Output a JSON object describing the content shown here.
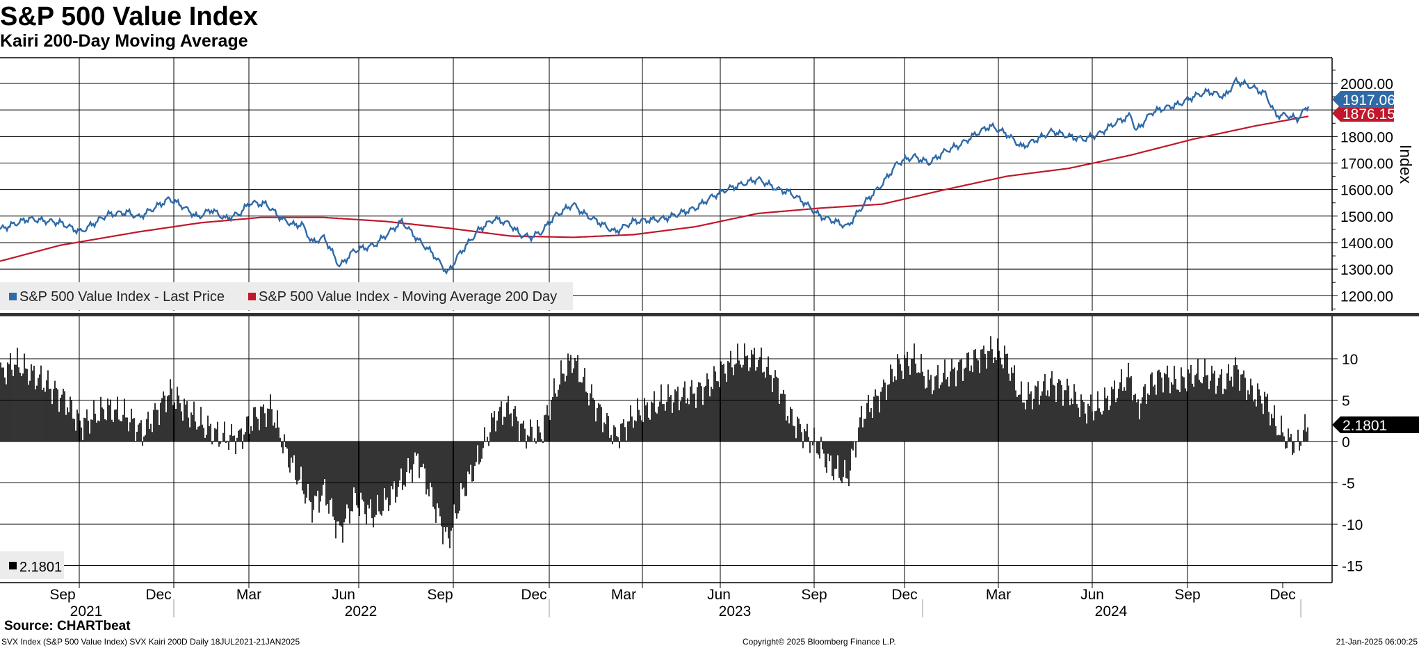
{
  "header": {
    "title": "S&P 500 Value Index",
    "subtitle": "Kairi 200-Day Moving Average"
  },
  "footer": {
    "source": "Source: CHARTbeat",
    "ticker_info": "SVX Index (S&P 500 Value Index) SVX Kairi 200D  Daily 18JUL2021-21JAN2025",
    "copyright": "Copyright© 2025 Bloomberg Finance L.P.",
    "timestamp": "21-Jan-2025 06:00:25"
  },
  "colors": {
    "price_line": "#2e6aa8",
    "ma_line": "#c0172b",
    "bars": "#000000",
    "grid": "#000000",
    "legend_bg": "#ececec"
  },
  "chart_data": [
    {
      "type": "line",
      "title": "S&P 500 Value Index",
      "ylabel": "Index",
      "ylim": [
        1100,
        2100
      ],
      "yticks": [
        "1200.00",
        "1300.00",
        "1400.00",
        "1500.00",
        "1600.00",
        "1700.00",
        "1800.00",
        "1900.00",
        "2000.00"
      ],
      "grid": true,
      "legend": [
        "S&P 500 Value Index - Last Price",
        "S&P 500 Value Index - Moving Average 200 Day"
      ],
      "last_value_labels": [
        {
          "text": "1917.06",
          "value": 1917.06,
          "color": "#2e6aa8"
        },
        {
          "text": "1876.15",
          "value": 1876.15,
          "color": "#c0172b"
        }
      ],
      "series": [
        {
          "name": "S&P 500 Value Index - Last Price",
          "color": "#2e6aa8",
          "x": [
            "2021-07-18",
            "2021-08-15",
            "2021-09-15",
            "2021-10-05",
            "2021-10-31",
            "2021-11-20",
            "2021-12-01",
            "2021-12-31",
            "2022-01-12",
            "2022-01-28",
            "2022-02-10",
            "2022-02-24",
            "2022-03-10",
            "2022-03-20",
            "2022-04-05",
            "2022-04-20",
            "2022-05-03",
            "2022-05-10",
            "2022-05-20",
            "2022-06-01",
            "2022-06-16",
            "2022-06-30",
            "2022-07-20",
            "2022-08-16",
            "2022-09-01",
            "2022-09-15",
            "2022-09-30",
            "2022-10-10",
            "2022-10-31",
            "2022-11-15",
            "2022-11-30",
            "2022-12-10",
            "2022-12-20",
            "2022-12-31",
            "2023-01-13",
            "2023-01-31",
            "2023-02-10",
            "2023-02-24",
            "2023-03-13",
            "2023-03-31",
            "2023-04-30",
            "2023-05-31",
            "2023-06-15",
            "2023-06-30",
            "2023-07-31",
            "2023-08-20",
            "2023-08-31",
            "2023-09-15",
            "2023-09-30",
            "2023-10-15",
            "2023-10-27",
            "2023-11-15",
            "2023-11-30",
            "2023-12-15",
            "2023-12-31",
            "2024-01-15",
            "2024-01-31",
            "2024-02-15",
            "2024-03-01",
            "2024-03-15",
            "2024-03-31",
            "2024-04-15",
            "2024-04-30",
            "2024-05-15",
            "2024-05-31",
            "2024-06-15",
            "2024-06-30",
            "2024-07-15",
            "2024-07-31",
            "2024-08-05",
            "2024-08-20",
            "2024-08-31",
            "2024-09-15",
            "2024-09-30",
            "2024-10-15",
            "2024-10-31",
            "2024-11-11",
            "2024-11-25",
            "2024-12-10",
            "2024-12-20",
            "2024-12-31",
            "2025-01-10",
            "2025-01-21"
          ],
          "values": [
            1450,
            1490,
            1475,
            1440,
            1505,
            1515,
            1495,
            1565,
            1540,
            1495,
            1525,
            1490,
            1510,
            1550,
            1545,
            1490,
            1465,
            1470,
            1400,
            1420,
            1310,
            1370,
            1390,
            1480,
            1410,
            1360,
            1285,
            1350,
            1450,
            1490,
            1470,
            1430,
            1420,
            1440,
            1500,
            1545,
            1510,
            1480,
            1440,
            1480,
            1490,
            1530,
            1570,
            1600,
            1640,
            1600,
            1590,
            1550,
            1500,
            1480,
            1460,
            1560,
            1620,
            1700,
            1725,
            1700,
            1745,
            1770,
            1810,
            1840,
            1810,
            1760,
            1790,
            1820,
            1800,
            1790,
            1810,
            1850,
            1880,
            1820,
            1890,
            1905,
            1920,
            1950,
            1970,
            1950,
            2010,
            1990,
            1960,
            1880,
            1880,
            1865,
            1917.06
          ]
        },
        {
          "name": "S&P 500 Value Index - Moving Average 200 Day",
          "color": "#c0172b",
          "x": [
            "2021-07-18",
            "2021-09-15",
            "2021-11-30",
            "2022-01-31",
            "2022-03-31",
            "2022-05-31",
            "2022-07-31",
            "2022-09-30",
            "2022-11-30",
            "2023-01-31",
            "2023-03-31",
            "2023-05-31",
            "2023-07-31",
            "2023-09-30",
            "2023-11-30",
            "2024-01-31",
            "2024-03-31",
            "2024-05-31",
            "2024-07-31",
            "2024-09-30",
            "2024-11-30",
            "2025-01-21"
          ],
          "values": [
            1330,
            1390,
            1440,
            1475,
            1495,
            1495,
            1480,
            1455,
            1425,
            1420,
            1430,
            1460,
            1510,
            1530,
            1545,
            1600,
            1650,
            1680,
            1730,
            1790,
            1840,
            1876.15
          ]
        }
      ]
    },
    {
      "type": "bar",
      "title": "Kairi 200-Day Moving Average",
      "ylim": [
        -17,
        15
      ],
      "yticks": [
        "-15",
        "-10",
        "-5",
        "0",
        "5",
        "10"
      ],
      "grid": true,
      "legend": [
        "2.1801"
      ],
      "last_value_labels": [
        {
          "text": "2.1801",
          "value": 2.1801,
          "color": "#000000"
        }
      ],
      "series": [
        {
          "name": "Kairi 200D",
          "color": "#000000",
          "x": [
            "2021-07-18",
            "2021-08-01",
            "2021-09-01",
            "2021-09-20",
            "2021-10-05",
            "2021-10-31",
            "2021-11-20",
            "2021-12-05",
            "2021-12-31",
            "2022-01-15",
            "2022-02-01",
            "2022-02-20",
            "2022-03-10",
            "2022-03-25",
            "2022-04-10",
            "2022-04-25",
            "2022-05-05",
            "2022-05-20",
            "2022-06-01",
            "2022-06-16",
            "2022-07-01",
            "2022-07-20",
            "2022-08-16",
            "2022-09-01",
            "2022-09-15",
            "2022-09-30",
            "2022-10-15",
            "2022-10-31",
            "2022-11-15",
            "2022-11-30",
            "2022-12-15",
            "2022-12-31",
            "2023-01-10",
            "2023-01-20",
            "2023-01-31",
            "2023-02-15",
            "2023-03-01",
            "2023-03-13",
            "2023-03-31",
            "2023-04-30",
            "2023-05-31",
            "2023-06-15",
            "2023-06-30",
            "2023-07-15",
            "2023-07-31",
            "2023-08-20",
            "2023-08-31",
            "2023-09-15",
            "2023-09-30",
            "2023-10-10",
            "2023-10-27",
            "2023-11-10",
            "2023-11-30",
            "2023-12-15",
            "2023-12-31",
            "2024-01-15",
            "2024-01-31",
            "2024-02-15",
            "2024-03-01",
            "2024-03-15",
            "2024-03-31",
            "2024-04-15",
            "2024-04-30",
            "2024-05-15",
            "2024-05-31",
            "2024-06-15",
            "2024-06-30",
            "2024-07-15",
            "2024-07-31",
            "2024-08-05",
            "2024-08-20",
            "2024-08-31",
            "2024-09-15",
            "2024-09-30",
            "2024-10-15",
            "2024-10-31",
            "2024-11-11",
            "2024-11-25",
            "2024-12-10",
            "2024-12-20",
            "2024-12-31",
            "2025-01-10",
            "2025-01-21"
          ],
          "values": [
            8,
            9.5,
            7,
            5,
            2,
            4,
            3,
            1,
            6,
            4,
            2,
            0.5,
            0.5,
            3,
            4,
            -1.5,
            -4,
            -8,
            -6,
            -11,
            -7,
            -9,
            -5,
            -2,
            -7,
            -12,
            -6,
            -2,
            3,
            4,
            1,
            1,
            5,
            8,
            10,
            6,
            3,
            0.5,
            3,
            5,
            6,
            7,
            9,
            10,
            10,
            7,
            3,
            1,
            -1,
            -3,
            -4.5,
            3,
            6,
            9,
            10,
            7,
            8,
            9,
            10,
            11,
            10,
            5,
            6,
            7,
            6,
            4,
            4,
            6,
            8,
            4,
            7,
            8,
            7,
            8,
            8,
            7,
            9,
            6,
            5,
            2,
            0.2,
            -0.5,
            2.1801
          ]
        }
      ]
    },
    {
      "type": "axis",
      "month_ticks": [
        "Sep",
        "Dec",
        "Mar",
        "Jun",
        "Sep",
        "Dec",
        "Mar",
        "Jun",
        "Sep",
        "Dec",
        "Mar",
        "Jun",
        "Sep",
        "Dec"
      ],
      "year_labels": [
        "2021",
        "2022",
        "2023",
        "2024"
      ]
    }
  ]
}
